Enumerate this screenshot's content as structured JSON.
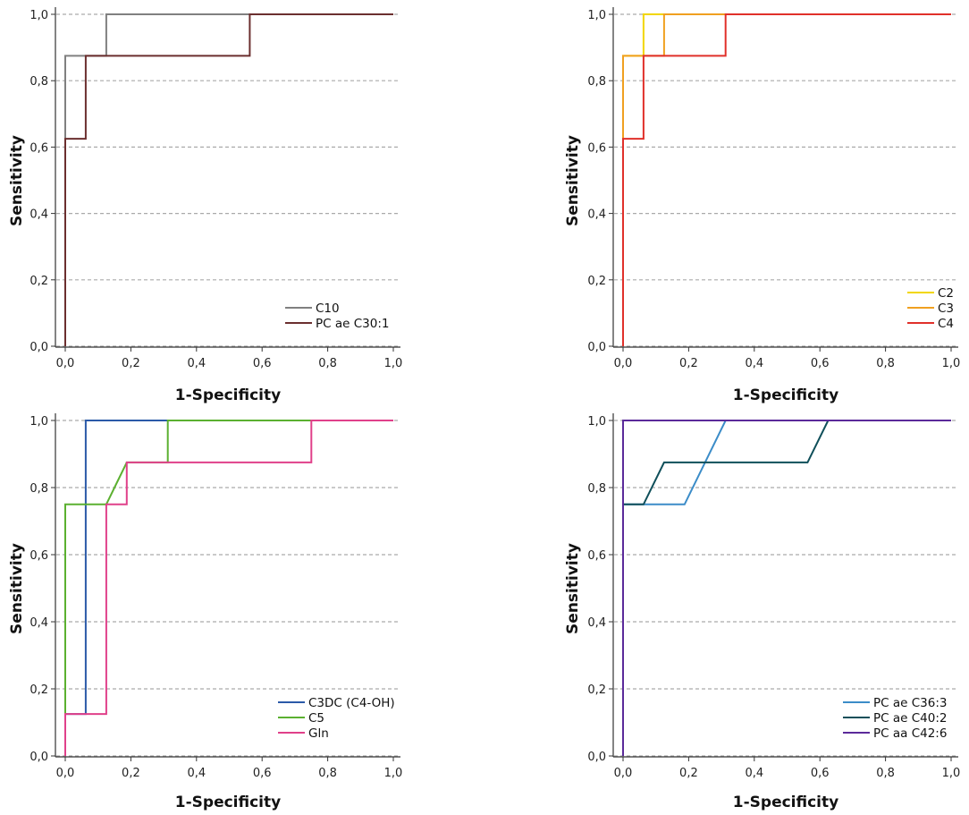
{
  "chart_data": [
    {
      "type": "line",
      "title": "",
      "xlabel": "1-Specificity",
      "ylabel": "Sensitivity",
      "xlim": [
        0,
        1
      ],
      "ylim": [
        0,
        1
      ],
      "grid": "horizontal dashed",
      "legend": "bottom-right",
      "ticks": [
        "0,0",
        "0,2",
        "0,4",
        "0,6",
        "0,8",
        "1,0"
      ],
      "series": [
        {
          "name": "C10",
          "color": "#808080",
          "points": [
            [
              0,
              0
            ],
            [
              0,
              0.875
            ],
            [
              0.125,
              0.875
            ],
            [
              0.125,
              1
            ],
            [
              1,
              1
            ]
          ]
        },
        {
          "name": "PC ae C30:1",
          "color": "#6b2f2f",
          "points": [
            [
              0,
              0
            ],
            [
              0,
              0.625
            ],
            [
              0.0625,
              0.625
            ],
            [
              0.0625,
              0.875
            ],
            [
              0.5625,
              0.875
            ],
            [
              0.5625,
              1
            ],
            [
              1,
              1
            ]
          ]
        }
      ]
    },
    {
      "type": "line",
      "title": "",
      "xlabel": "1-Specificity",
      "ylabel": "Sensitivity",
      "xlim": [
        0,
        1
      ],
      "ylim": [
        0,
        1
      ],
      "grid": "horizontal dashed",
      "legend": "bottom-right",
      "ticks": [
        "0,0",
        "0,2",
        "0,4",
        "0,6",
        "0,8",
        "1,0"
      ],
      "series": [
        {
          "name": "C2",
          "color": "#f2d600",
          "points": [
            [
              0,
              0
            ],
            [
              0,
              0.875
            ],
            [
              0.0625,
              0.875
            ],
            [
              0.0625,
              1
            ],
            [
              1,
              1
            ]
          ]
        },
        {
          "name": "C3",
          "color": "#f0a020",
          "points": [
            [
              0,
              0
            ],
            [
              0,
              0.875
            ],
            [
              0.125,
              0.875
            ],
            [
              0.125,
              1
            ],
            [
              1,
              1
            ]
          ]
        },
        {
          "name": "C4",
          "color": "#e0302a",
          "points": [
            [
              0,
              0
            ],
            [
              0,
              0.625
            ],
            [
              0.0625,
              0.625
            ],
            [
              0.0625,
              0.875
            ],
            [
              0.3125,
              0.875
            ],
            [
              0.3125,
              1
            ],
            [
              1,
              1
            ]
          ]
        }
      ]
    },
    {
      "type": "line",
      "title": "",
      "xlabel": "1-Specificity",
      "ylabel": "Sensitivity",
      "xlim": [
        0,
        1
      ],
      "ylim": [
        0,
        1
      ],
      "grid": "horizontal dashed",
      "legend": "bottom-right",
      "ticks": [
        "0,0",
        "0,2",
        "0,4",
        "0,6",
        "0,8",
        "1,0"
      ],
      "series": [
        {
          "name": "C3DC (C4-OH)",
          "color": "#2b5aa8",
          "points": [
            [
              0,
              0
            ],
            [
              0,
              0.125
            ],
            [
              0.0625,
              0.125
            ],
            [
              0.0625,
              1
            ],
            [
              1,
              1
            ]
          ]
        },
        {
          "name": "C5",
          "color": "#5bb030",
          "points": [
            [
              0,
              0
            ],
            [
              0,
              0.75
            ],
            [
              0.125,
              0.75
            ],
            [
              0.1875,
              0.875
            ],
            [
              0.3125,
              0.875
            ],
            [
              0.3125,
              1
            ],
            [
              1,
              1
            ]
          ]
        },
        {
          "name": "Gln",
          "color": "#e0408a",
          "points": [
            [
              0,
              0
            ],
            [
              0,
              0.125
            ],
            [
              0.125,
              0.125
            ],
            [
              0.125,
              0.75
            ],
            [
              0.1875,
              0.75
            ],
            [
              0.1875,
              0.875
            ],
            [
              0.75,
              0.875
            ],
            [
              0.75,
              1
            ],
            [
              1,
              1
            ]
          ]
        }
      ]
    },
    {
      "type": "line",
      "title": "",
      "xlabel": "1-Specificity",
      "ylabel": "Sensitivity",
      "xlim": [
        0,
        1
      ],
      "ylim": [
        0,
        1
      ],
      "grid": "horizontal dashed",
      "legend": "bottom-right",
      "ticks": [
        "0,0",
        "0,2",
        "0,4",
        "0,6",
        "0,8",
        "1,0"
      ],
      "series": [
        {
          "name": "PC ae C36:3",
          "color": "#3b8cc8",
          "points": [
            [
              0,
              0
            ],
            [
              0,
              0.75
            ],
            [
              0.1875,
              0.75
            ],
            [
              0.3125,
              1
            ],
            [
              1,
              1
            ]
          ]
        },
        {
          "name": "PC ae C40:2",
          "color": "#0f4f5a",
          "points": [
            [
              0,
              0
            ],
            [
              0,
              0.75
            ],
            [
              0.0625,
              0.75
            ],
            [
              0.125,
              0.875
            ],
            [
              0.5625,
              0.875
            ],
            [
              0.625,
              1
            ],
            [
              1,
              1
            ]
          ]
        },
        {
          "name": "PC aa C42:6",
          "color": "#5b2a9a",
          "points": [
            [
              0,
              0
            ],
            [
              0,
              1
            ],
            [
              1,
              1
            ]
          ]
        }
      ]
    }
  ]
}
